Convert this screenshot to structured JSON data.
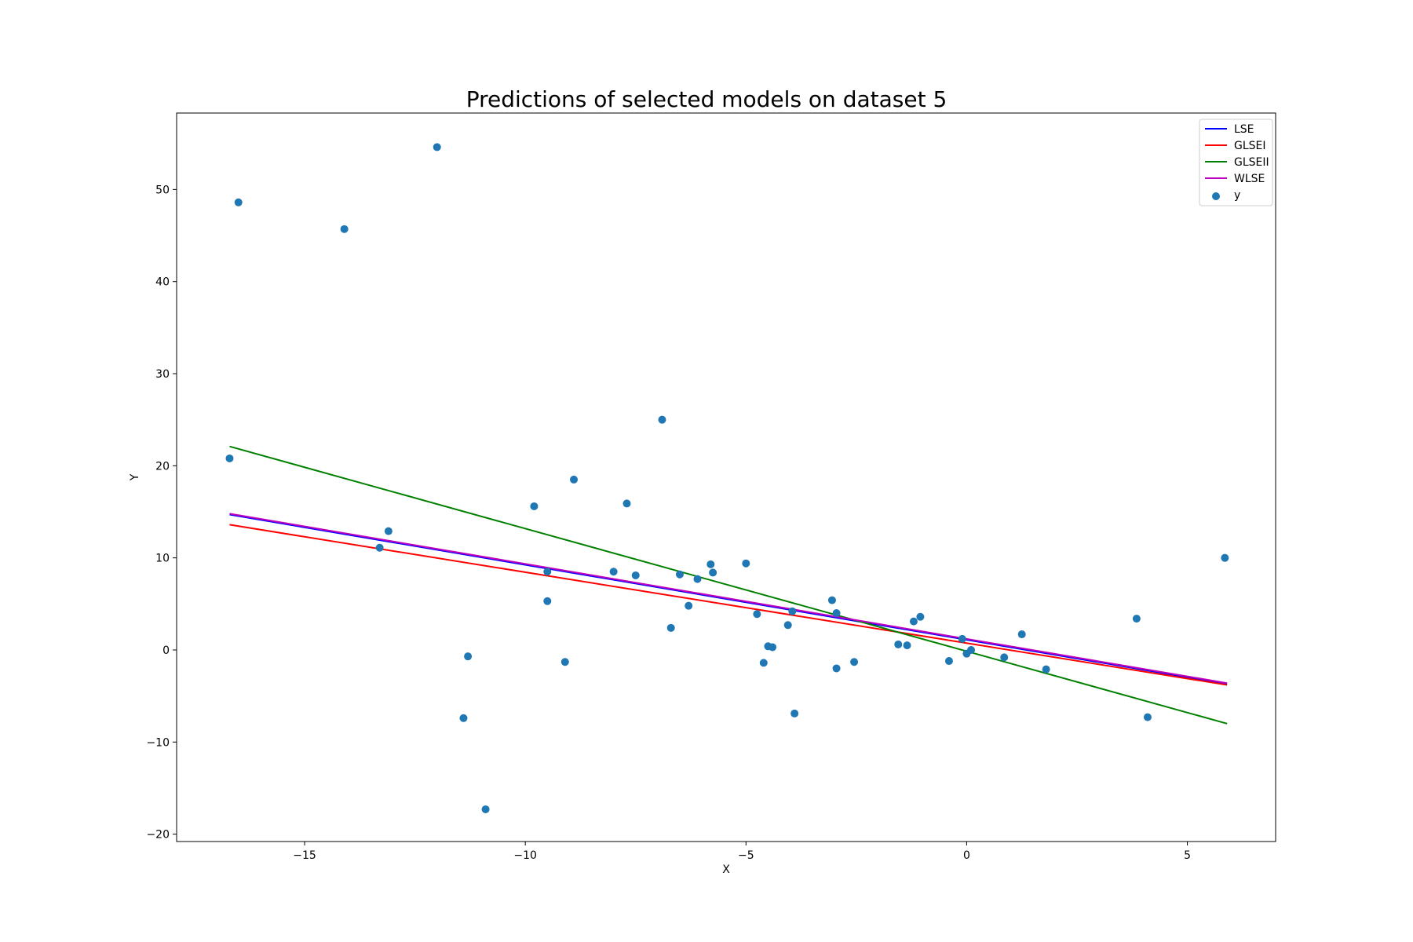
{
  "chart_data": {
    "type": "scatter",
    "title": "Predictions of selected models on dataset 5",
    "xlabel": "X",
    "ylabel": "Y",
    "xlim": [
      -17.9,
      7.0
    ],
    "ylim": [
      -20.8,
      58.3
    ],
    "xticks": [
      -15,
      -10,
      -5,
      0,
      5
    ],
    "yticks": [
      -20,
      -10,
      0,
      10,
      20,
      30,
      40,
      50
    ],
    "xtick_labels": [
      "−15",
      "−10",
      "−5",
      "0",
      "5"
    ],
    "ytick_labels": [
      "−20",
      "−10",
      "0",
      "10",
      "20",
      "30",
      "40",
      "50"
    ],
    "grid": false,
    "legend_position": "top-right",
    "series": [
      {
        "name": "LSE",
        "kind": "line",
        "color": "#0000ff",
        "x": [
          -16.7,
          5.9
        ],
        "y": [
          14.7,
          -3.7
        ]
      },
      {
        "name": "GLSEI",
        "kind": "line",
        "color": "#ff0000",
        "x": [
          -16.7,
          5.9
        ],
        "y": [
          13.6,
          -3.8
        ]
      },
      {
        "name": "GLSEII",
        "kind": "line",
        "color": "#008000",
        "x": [
          -16.7,
          5.9
        ],
        "y": [
          22.1,
          -8.0
        ]
      },
      {
        "name": "WLSE",
        "kind": "line",
        "color": "#bf00bf",
        "x": [
          -16.7,
          5.9
        ],
        "y": [
          14.8,
          -3.6
        ]
      },
      {
        "name": "y",
        "kind": "scatter",
        "color": "#1f77b4",
        "points": [
          [
            -16.7,
            20.8
          ],
          [
            -16.5,
            48.6
          ],
          [
            -14.1,
            45.7
          ],
          [
            -12.0,
            54.6
          ],
          [
            -13.3,
            11.1
          ],
          [
            -13.1,
            12.9
          ],
          [
            -11.4,
            -7.4
          ],
          [
            -11.3,
            -0.7
          ],
          [
            -10.9,
            -17.3
          ],
          [
            -9.8,
            15.6
          ],
          [
            -9.5,
            8.5
          ],
          [
            -9.5,
            5.3
          ],
          [
            -9.1,
            -1.3
          ],
          [
            -8.9,
            18.5
          ],
          [
            -8.0,
            8.5
          ],
          [
            -7.7,
            15.9
          ],
          [
            -7.5,
            8.1
          ],
          [
            -6.9,
            25.0
          ],
          [
            -6.7,
            2.4
          ],
          [
            -6.5,
            8.2
          ],
          [
            -6.3,
            4.8
          ],
          [
            -6.1,
            7.7
          ],
          [
            -5.8,
            9.3
          ],
          [
            -5.75,
            8.4
          ],
          [
            -5.0,
            9.4
          ],
          [
            -4.75,
            3.9
          ],
          [
            -4.6,
            -1.4
          ],
          [
            -4.5,
            0.4
          ],
          [
            -4.4,
            0.3
          ],
          [
            -4.05,
            2.7
          ],
          [
            -3.95,
            4.2
          ],
          [
            -3.9,
            -6.9
          ],
          [
            -3.05,
            5.4
          ],
          [
            -2.95,
            4.0
          ],
          [
            -2.95,
            -2.0
          ],
          [
            -2.55,
            -1.3
          ],
          [
            -1.55,
            0.6
          ],
          [
            -1.35,
            0.5
          ],
          [
            -1.2,
            3.1
          ],
          [
            -1.05,
            3.6
          ],
          [
            -0.4,
            -1.2
          ],
          [
            -0.1,
            1.2
          ],
          [
            0.0,
            -0.4
          ],
          [
            0.1,
            0.0
          ],
          [
            0.85,
            -0.8
          ],
          [
            1.25,
            1.7
          ],
          [
            1.8,
            -2.1
          ],
          [
            3.85,
            3.4
          ],
          [
            4.1,
            -7.3
          ],
          [
            5.85,
            10.0
          ]
        ]
      }
    ]
  }
}
